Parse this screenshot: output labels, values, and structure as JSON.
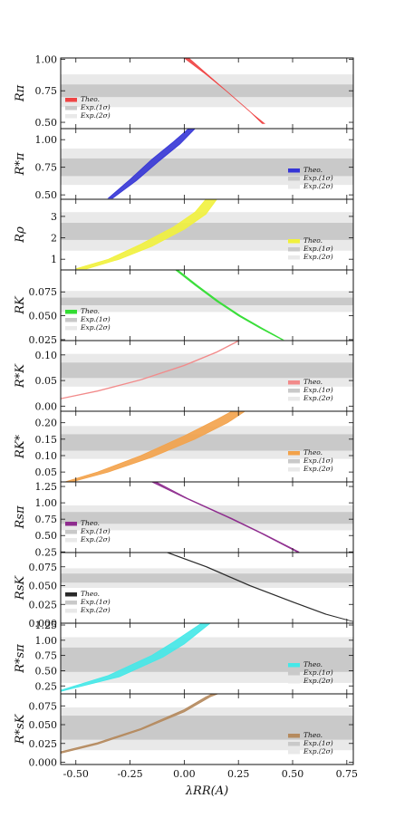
{
  "legend": {
    "theo": "Theo.",
    "exp1": "Exp.(1σ)",
    "exp2": "Exp.(2σ)"
  },
  "colors": {
    "band1": "#c9c9c9",
    "band2": "#e9e9e9",
    "frame": "#111111"
  },
  "chart_data": {
    "type": "line",
    "x_label": "λRR(A)",
    "xlim": [
      -0.57,
      0.78
    ],
    "x_ticks": [
      "-0.50",
      "-0.25",
      "0.00",
      "0.25",
      "0.50",
      "0.75"
    ],
    "panels": [
      {
        "name": "R_π",
        "label": "Rπ",
        "color": "#ef4444",
        "ylim": [
          0.45,
          1.01
        ],
        "yticks": [
          "0.50",
          "0.75",
          "1.00"
        ],
        "exp1": [
          0.7,
          0.8
        ],
        "exp2": [
          0.62,
          0.88
        ],
        "legend_pos": "bottom-left",
        "series_upper": [
          [
            0.0,
            1.01
          ],
          [
            0.1,
            0.88
          ],
          [
            0.2,
            0.74
          ],
          [
            0.3,
            0.59
          ],
          [
            0.36,
            0.49
          ]
        ],
        "series_lower": [
          [
            0.02,
            1.01
          ],
          [
            0.12,
            0.86
          ],
          [
            0.22,
            0.71
          ],
          [
            0.32,
            0.56
          ],
          [
            0.37,
            0.49
          ]
        ]
      },
      {
        "name": "R*_π",
        "label": "R*π",
        "color": "#3535d6",
        "ylim": [
          0.46,
          1.1
        ],
        "yticks": [
          "0.50",
          "0.75",
          "1.00"
        ],
        "exp1": [
          0.67,
          0.83
        ],
        "exp2": [
          0.59,
          0.92
        ],
        "legend_pos": "bottom-right",
        "series_upper": [
          [
            -0.35,
            0.47
          ],
          [
            -0.25,
            0.64
          ],
          [
            -0.15,
            0.82
          ],
          [
            -0.05,
            0.98
          ],
          [
            0.02,
            1.1
          ]
        ],
        "series_lower": [
          [
            -0.33,
            0.47
          ],
          [
            -0.22,
            0.63
          ],
          [
            -0.12,
            0.8
          ],
          [
            -0.02,
            0.96
          ],
          [
            0.05,
            1.1
          ]
        ]
      },
      {
        "name": "R_ρ",
        "label": "Rρ",
        "color": "#f1f13c",
        "ylim": [
          0.5,
          3.8
        ],
        "yticks": [
          "1",
          "2",
          "3"
        ],
        "exp1": [
          1.9,
          2.7
        ],
        "exp2": [
          1.4,
          3.2
        ],
        "legend_pos": "bottom-right",
        "series_upper": [
          [
            -0.5,
            0.55
          ],
          [
            -0.35,
            1.0
          ],
          [
            -0.2,
            1.7
          ],
          [
            -0.05,
            2.5
          ],
          [
            0.05,
            3.2
          ],
          [
            0.1,
            3.8
          ]
        ],
        "series_lower": [
          [
            -0.45,
            0.55
          ],
          [
            -0.3,
            1.0
          ],
          [
            -0.15,
            1.6
          ],
          [
            0.0,
            2.4
          ],
          [
            0.1,
            3.1
          ],
          [
            0.15,
            3.8
          ]
        ]
      },
      {
        "name": "R_K",
        "label": "RK",
        "color": "#33dd33",
        "ylim": [
          0.024,
          0.098
        ],
        "yticks": [
          "0.025",
          "0.050",
          "0.075"
        ],
        "exp1": [
          0.061,
          0.069
        ],
        "exp2": [
          0.054,
          0.076
        ],
        "legend_pos": "bottom-left",
        "series_upper": [
          [
            -0.04,
            0.098
          ],
          [
            0.05,
            0.082
          ],
          [
            0.15,
            0.065
          ],
          [
            0.25,
            0.05
          ],
          [
            0.35,
            0.037
          ],
          [
            0.45,
            0.025
          ]
        ],
        "series_lower": [
          [
            -0.03,
            0.098
          ],
          [
            0.06,
            0.082
          ],
          [
            0.16,
            0.065
          ],
          [
            0.26,
            0.05
          ],
          [
            0.36,
            0.037
          ],
          [
            0.455,
            0.025
          ]
        ]
      },
      {
        "name": "R*_K",
        "label": "R*K",
        "color": "#f28a8a",
        "ylim": [
          -0.01,
          0.128
        ],
        "yticks": [
          "0.00",
          "0.05",
          "0.10"
        ],
        "exp1": [
          0.055,
          0.085
        ],
        "exp2": [
          0.038,
          0.102
        ],
        "legend_pos": "bottom-right",
        "series_upper": [
          [
            -0.57,
            0.015
          ],
          [
            -0.4,
            0.03
          ],
          [
            -0.2,
            0.052
          ],
          [
            0.0,
            0.08
          ],
          [
            0.15,
            0.106
          ],
          [
            0.25,
            0.128
          ]
        ],
        "series_lower": [
          [
            -0.57,
            0.014
          ],
          [
            -0.4,
            0.029
          ],
          [
            -0.2,
            0.051
          ],
          [
            0.0,
            0.079
          ],
          [
            0.15,
            0.105
          ],
          [
            0.255,
            0.128
          ]
        ]
      },
      {
        "name": "R_K*",
        "label": "RK*",
        "color": "#f3a24a",
        "ylim": [
          0.02,
          0.235
        ],
        "yticks": [
          "0.05",
          "0.10",
          "0.15",
          "0.20"
        ],
        "exp1": [
          0.115,
          0.165
        ],
        "exp2": [
          0.09,
          0.19
        ],
        "legend_pos": "bottom-right",
        "series_upper": [
          [
            -0.55,
            0.02
          ],
          [
            -0.4,
            0.05
          ],
          [
            -0.2,
            0.1
          ],
          [
            0.0,
            0.16
          ],
          [
            0.15,
            0.21
          ],
          [
            0.22,
            0.235
          ]
        ],
        "series_lower": [
          [
            -0.52,
            0.02
          ],
          [
            -0.35,
            0.05
          ],
          [
            -0.15,
            0.095
          ],
          [
            0.05,
            0.15
          ],
          [
            0.2,
            0.2
          ],
          [
            0.28,
            0.235
          ]
        ]
      },
      {
        "name": "R_sπ",
        "label": "Rsπ",
        "color": "#8e2c8e",
        "ylim": [
          0.24,
          1.32
        ],
        "yticks": [
          "0.25",
          "0.50",
          "0.75",
          "1.00",
          "1.25"
        ],
        "exp1": [
          0.68,
          0.86
        ],
        "exp2": [
          0.58,
          0.96
        ],
        "legend_pos": "bottom-left",
        "series_upper": [
          [
            -0.15,
            1.32
          ],
          [
            0.0,
            1.08
          ],
          [
            0.2,
            0.78
          ],
          [
            0.35,
            0.54
          ],
          [
            0.52,
            0.25
          ]
        ],
        "series_lower": [
          [
            -0.13,
            1.32
          ],
          [
            0.02,
            1.06
          ],
          [
            0.22,
            0.76
          ],
          [
            0.37,
            0.52
          ],
          [
            0.53,
            0.25
          ]
        ]
      },
      {
        "name": "R_sK",
        "label": "RsK",
        "color": "#2a2a2a",
        "ylim": [
          0.0,
          0.094
        ],
        "yticks": [
          "0.000",
          "0.025",
          "0.050",
          "0.075"
        ],
        "exp1": [
          0.054,
          0.066
        ],
        "exp2": [
          0.047,
          0.073
        ],
        "legend_pos": "bottom-left",
        "series_upper": [
          [
            -0.08,
            0.094
          ],
          [
            0.1,
            0.075
          ],
          [
            0.3,
            0.05
          ],
          [
            0.5,
            0.028
          ],
          [
            0.65,
            0.012
          ],
          [
            0.78,
            0.002
          ]
        ],
        "series_lower": [
          [
            -0.075,
            0.094
          ],
          [
            0.105,
            0.075
          ],
          [
            0.305,
            0.05
          ],
          [
            0.505,
            0.028
          ],
          [
            0.655,
            0.012
          ],
          [
            0.78,
            0.002
          ]
        ]
      },
      {
        "name": "R*_sπ",
        "label": "R*sπ",
        "color": "#44e8e8",
        "ylim": [
          0.12,
          1.28
        ],
        "yticks": [
          "0.25",
          "0.50",
          "0.75",
          "1.00",
          "1.25"
        ],
        "exp1": [
          0.48,
          0.88
        ],
        "exp2": [
          0.3,
          1.05
        ],
        "legend_pos": "bottom-right",
        "series_upper": [
          [
            -0.57,
            0.18
          ],
          [
            -0.35,
            0.42
          ],
          [
            -0.15,
            0.75
          ],
          [
            -0.05,
            0.97
          ],
          [
            0.08,
            1.28
          ]
        ],
        "series_lower": [
          [
            -0.57,
            0.16
          ],
          [
            -0.3,
            0.4
          ],
          [
            -0.1,
            0.72
          ],
          [
            0.0,
            0.94
          ],
          [
            0.12,
            1.28
          ]
        ]
      },
      {
        "name": "R*_sK",
        "label": "R*sK",
        "color": "#b58a5e",
        "ylim": [
          -0.003,
          0.091
        ],
        "yticks": [
          "0.000",
          "0.025",
          "0.050",
          "0.075"
        ],
        "exp1": [
          0.03,
          0.062
        ],
        "exp2": [
          0.016,
          0.073
        ],
        "legend_pos": "bottom-right",
        "series_upper": [
          [
            -0.57,
            0.014
          ],
          [
            -0.4,
            0.026
          ],
          [
            -0.2,
            0.045
          ],
          [
            0.0,
            0.07
          ],
          [
            0.1,
            0.087
          ],
          [
            0.13,
            0.091
          ]
        ],
        "series_lower": [
          [
            -0.57,
            0.012
          ],
          [
            -0.4,
            0.024
          ],
          [
            -0.2,
            0.043
          ],
          [
            0.0,
            0.067
          ],
          [
            0.12,
            0.087
          ],
          [
            0.155,
            0.091
          ]
        ]
      }
    ]
  }
}
